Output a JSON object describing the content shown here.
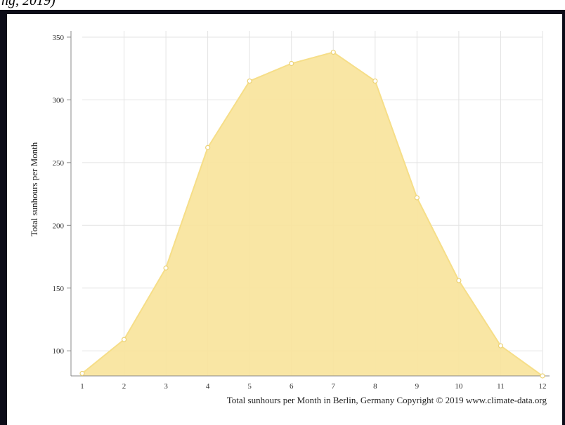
{
  "page": {
    "top_text": "ng, 2019)"
  },
  "chart_data": {
    "type": "area",
    "title": "",
    "xlabel": "Total sunhours per Month in Berlin, Germany Copyright © 2019 www.climate-data.org",
    "ylabel": "Total sunhours per Month",
    "x": [
      1,
      2,
      3,
      4,
      5,
      6,
      7,
      8,
      9,
      10,
      11,
      12
    ],
    "x_tick_labels": [
      "1",
      "2",
      "3",
      "4",
      "5",
      "6",
      "7",
      "8",
      "9",
      "10",
      "11",
      "12"
    ],
    "y_ticks": [
      100,
      150,
      200,
      250,
      300,
      350
    ],
    "y_tick_labels": [
      "100",
      "150",
      "200",
      "250",
      "300",
      "350"
    ],
    "series": [
      {
        "values": [
          82,
          109,
          166,
          262,
          315,
          329,
          338,
          315,
          222,
          156,
          104,
          80
        ]
      }
    ],
    "xlim": [
      1,
      12
    ],
    "ylim": [
      80,
      355
    ],
    "grid": true,
    "legend": "none",
    "colors": {
      "fill": "#f8e49c",
      "line": "#f6de88",
      "marker_fill": "#ffffff",
      "marker_stroke": "#ecd276",
      "grid": "#e3e3e3",
      "axis": "#888888"
    }
  }
}
